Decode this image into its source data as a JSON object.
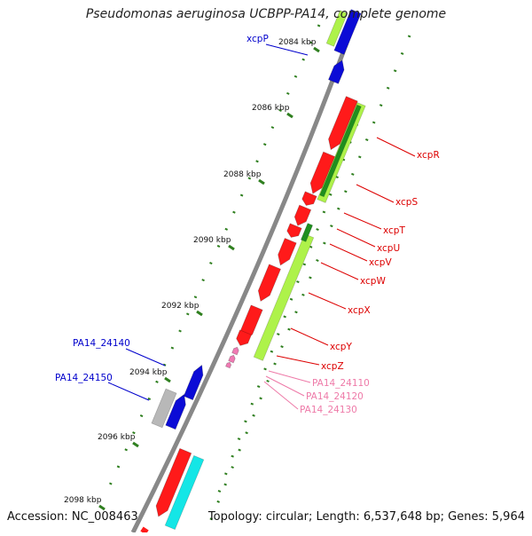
{
  "title": "Pseudomonas aeruginosa UCBPP-PA14, complete genome",
  "footer": {
    "accession": "Accession: NC_008463",
    "summary": "Topology: circular; Length: 6,537,648 bp; Genes: 5,964"
  },
  "colors": {
    "backbone": "#888888",
    "ticks": "#2f7f1f",
    "red": "#ff1a1a",
    "blue": "#0b0bd6",
    "lime": "#aef24a",
    "darkgreen": "#1f8f1f",
    "cyan": "#14e6e6",
    "gray": "#b8b8b8",
    "pink": "#f07ab3",
    "label_blue": "#0000cc",
    "label_red": "#dd0000",
    "label_pink": "#ee7aa8"
  },
  "scale": {
    "unit": "kbp",
    "ticks": [
      "2084 kbp",
      "2086 kbp",
      "2088 kbp",
      "2090 kbp",
      "2092 kbp",
      "2094 kbp",
      "2096 kbp",
      "2098 kbp"
    ]
  },
  "genes": [
    {
      "name": "xcpP",
      "color": "label_blue"
    },
    {
      "name": "xcpR",
      "color": "label_red"
    },
    {
      "name": "xcpS",
      "color": "label_red"
    },
    {
      "name": "xcpT",
      "color": "label_red"
    },
    {
      "name": "xcpU",
      "color": "label_red"
    },
    {
      "name": "xcpV",
      "color": "label_red"
    },
    {
      "name": "xcpW",
      "color": "label_red"
    },
    {
      "name": "xcpX",
      "color": "label_red"
    },
    {
      "name": "xcpY",
      "color": "label_red"
    },
    {
      "name": "xcpZ",
      "color": "label_red"
    },
    {
      "name": "PA14_24110",
      "color": "label_pink"
    },
    {
      "name": "PA14_24120",
      "color": "label_pink"
    },
    {
      "name": "PA14_24130",
      "color": "label_pink"
    },
    {
      "name": "PA14_24140",
      "color": "label_blue"
    },
    {
      "name": "PA14_24150",
      "color": "label_blue"
    }
  ]
}
